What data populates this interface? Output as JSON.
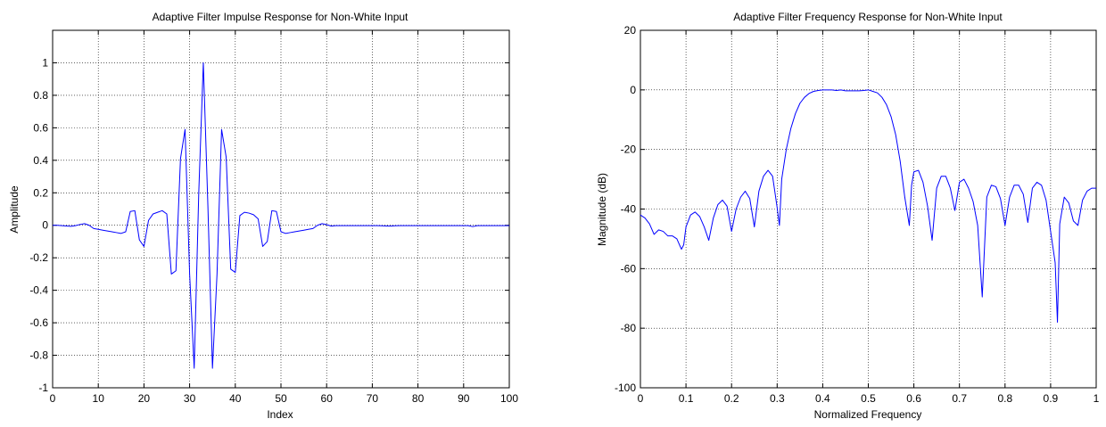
{
  "chart_data": [
    {
      "type": "line",
      "title": "Adaptive Filter Impulse Response for Non-White Input",
      "xlabel": "Index",
      "ylabel": "Amplitude",
      "xlim": [
        0,
        100
      ],
      "ylim": [
        -1,
        1.2
      ],
      "xticks": [
        0,
        10,
        20,
        30,
        40,
        50,
        60,
        70,
        80,
        90,
        100
      ],
      "yticks": [
        -1,
        -0.8,
        -0.6,
        -0.4,
        -0.2,
        0,
        0.2,
        0.4,
        0.6,
        0.8,
        1
      ],
      "xtick_labels": [
        "0",
        "10",
        "20",
        "30",
        "40",
        "50",
        "60",
        "70",
        "80",
        "90",
        "100"
      ],
      "ytick_labels": [
        "-1",
        "-0.8",
        "-0.6",
        "-0.4",
        "-0.2",
        "0",
        "0.2",
        "0.4",
        "0.6",
        "0.8",
        "1"
      ],
      "grid": true,
      "line_color": "#0000ff",
      "series": [
        {
          "x": [
            0,
            1,
            2,
            3,
            4,
            5,
            6,
            7,
            8,
            9,
            10,
            11,
            12,
            13,
            14,
            15,
            16,
            17,
            18,
            19,
            20,
            21,
            22,
            23,
            24,
            25,
            26,
            27,
            28,
            29,
            30,
            31,
            32,
            33,
            34,
            35,
            36,
            37,
            38,
            39,
            40,
            41,
            42,
            43,
            44,
            45,
            46,
            47,
            48,
            49,
            50,
            51,
            52,
            53,
            54,
            55,
            56,
            57,
            58,
            59,
            60,
            61,
            62,
            63,
            64,
            65,
            66,
            67,
            68,
            69,
            70,
            71,
            72,
            73,
            74,
            75,
            76,
            77,
            78,
            79,
            80,
            81,
            82,
            83,
            84,
            85,
            86,
            87,
            88,
            89,
            90,
            91,
            92,
            93,
            94,
            95,
            96,
            97,
            98,
            99,
            100
          ],
          "y": [
            0,
            0,
            -0.002,
            -0.004,
            -0.006,
            -0.002,
            0.005,
            0.01,
            0,
            -0.02,
            -0.025,
            -0.03,
            -0.035,
            -0.04,
            -0.045,
            -0.05,
            -0.04,
            0.085,
            0.09,
            -0.09,
            -0.13,
            0.03,
            0.07,
            0.08,
            0.09,
            0.07,
            -0.3,
            -0.28,
            0.41,
            0.59,
            -0.3,
            -0.88,
            0.2,
            1.0,
            0.12,
            -0.88,
            -0.3,
            0.59,
            0.42,
            -0.27,
            -0.29,
            0.06,
            0.08,
            0.075,
            0.065,
            0.04,
            -0.13,
            -0.1,
            0.09,
            0.085,
            -0.04,
            -0.05,
            -0.045,
            -0.04,
            -0.035,
            -0.03,
            -0.025,
            -0.02,
            0,
            0.01,
            0.004,
            -0.005,
            -0.002,
            -0.002,
            -0.002,
            -0.002,
            -0.002,
            -0.002,
            -0.002,
            -0.002,
            -0.002,
            -0.002,
            -0.003,
            -0.004,
            -0.005,
            -0.003,
            -0.002,
            -0.002,
            -0.002,
            -0.002,
            -0.002,
            -0.002,
            -0.002,
            -0.002,
            -0.002,
            -0.002,
            -0.002,
            -0.002,
            -0.002,
            -0.002,
            -0.002,
            -0.002,
            -0.008,
            -0.002,
            -0.002,
            -0.002,
            -0.002,
            -0.002,
            -0.002,
            -0.002,
            -0.002
          ]
        }
      ]
    },
    {
      "type": "line",
      "title": "Adaptive Filter Frequency Response for Non-White Input",
      "xlabel": "Normalized Frequency",
      "ylabel": "Magnitude (dB)",
      "xlim": [
        0,
        1
      ],
      "ylim": [
        -100,
        20
      ],
      "xticks": [
        0,
        0.1,
        0.2,
        0.3,
        0.4,
        0.5,
        0.6,
        0.7,
        0.8,
        0.9,
        1
      ],
      "yticks": [
        -100,
        -80,
        -60,
        -40,
        -20,
        0,
        20
      ],
      "xtick_labels": [
        "0",
        "0.1",
        "0.2",
        "0.3",
        "0.4",
        "0.5",
        "0.6",
        "0.7",
        "0.8",
        "0.9",
        "1"
      ],
      "ytick_labels": [
        "-100",
        "-80",
        "-60",
        "-40",
        "-20",
        "0",
        "20"
      ],
      "grid": true,
      "line_color": "#0000ff",
      "series": [
        {
          "x": [
            0,
            0.01,
            0.02,
            0.03,
            0.04,
            0.05,
            0.06,
            0.07,
            0.08,
            0.09,
            0.095,
            0.1,
            0.11,
            0.12,
            0.13,
            0.14,
            0.15,
            0.16,
            0.17,
            0.18,
            0.19,
            0.2,
            0.21,
            0.22,
            0.23,
            0.24,
            0.25,
            0.26,
            0.27,
            0.28,
            0.29,
            0.3,
            0.305,
            0.31,
            0.32,
            0.33,
            0.34,
            0.35,
            0.36,
            0.37,
            0.38,
            0.39,
            0.4,
            0.41,
            0.42,
            0.43,
            0.44,
            0.45,
            0.46,
            0.47,
            0.48,
            0.49,
            0.5,
            0.51,
            0.52,
            0.53,
            0.54,
            0.55,
            0.56,
            0.57,
            0.58,
            0.59,
            0.595,
            0.6,
            0.61,
            0.62,
            0.63,
            0.64,
            0.65,
            0.66,
            0.67,
            0.68,
            0.69,
            0.7,
            0.71,
            0.72,
            0.73,
            0.74,
            0.75,
            0.76,
            0.77,
            0.78,
            0.79,
            0.8,
            0.81,
            0.82,
            0.83,
            0.84,
            0.85,
            0.86,
            0.87,
            0.88,
            0.89,
            0.9,
            0.91,
            0.915,
            0.92,
            0.93,
            0.94,
            0.95,
            0.96,
            0.97,
            0.98,
            0.99,
            1.0
          ],
          "y": [
            -42,
            -43,
            -45,
            -48.5,
            -47,
            -47.5,
            -49,
            -49,
            -50,
            -53.5,
            -52,
            -46,
            -42,
            -41,
            -42.5,
            -46,
            -50.5,
            -43,
            -38.5,
            -37,
            -39,
            -47.5,
            -40,
            -36,
            -34,
            -36.5,
            -46,
            -34,
            -29,
            -27,
            -29,
            -39.5,
            -45.5,
            -30,
            -20,
            -13,
            -8,
            -4.5,
            -2.5,
            -1.2,
            -0.5,
            -0.2,
            0,
            0,
            0,
            -0.2,
            0,
            -0.3,
            -0.3,
            -0.3,
            -0.3,
            -0.2,
            0,
            -0.5,
            -1,
            -2.5,
            -5,
            -9,
            -15,
            -24,
            -36,
            -45.5,
            -32,
            -27.5,
            -27,
            -31,
            -39,
            -50.5,
            -33,
            -29,
            -29,
            -33,
            -40.5,
            -31,
            -30,
            -33,
            -37.5,
            -45.5,
            -69.5,
            -36,
            -32,
            -32.5,
            -36.5,
            -45.5,
            -36,
            -32,
            -32,
            -35,
            -44.5,
            -33,
            -31,
            -32,
            -37,
            -47.5,
            -58,
            -78,
            -45,
            -36,
            -38,
            -44,
            -45.5,
            -37,
            -34,
            -33,
            -33
          ]
        }
      ]
    }
  ]
}
